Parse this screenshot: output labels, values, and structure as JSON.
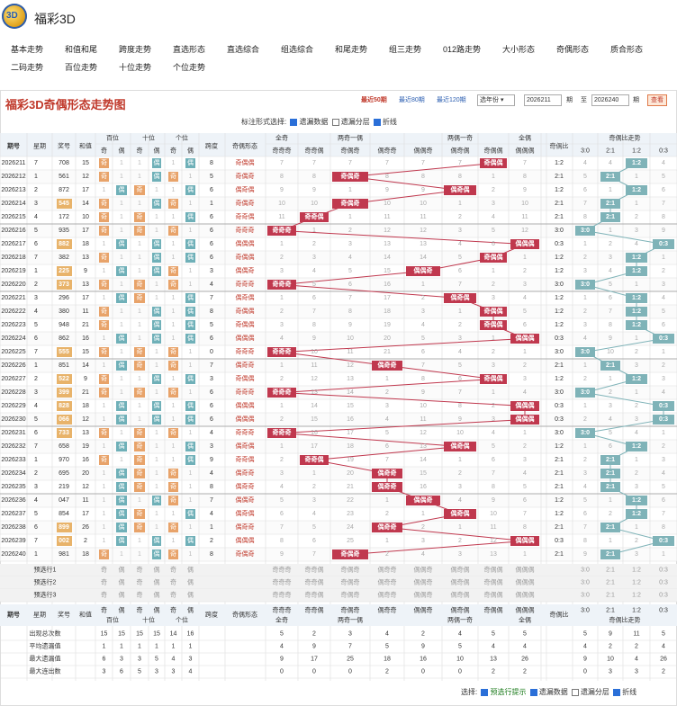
{
  "app": {
    "title": "福彩3D",
    "logo_text": "3D"
  },
  "nav": [
    {
      "label": "基本走势"
    },
    {
      "label": "和值和尾"
    },
    {
      "label": "跨度走势"
    },
    {
      "label": "直选形态"
    },
    {
      "label": "直选综合"
    },
    {
      "label": "组选综合"
    },
    {
      "label": "和尾走势"
    },
    {
      "label": "组三走势"
    },
    {
      "label": "012路走势"
    },
    {
      "label": "大小形态"
    },
    {
      "label": "奇偶形态"
    },
    {
      "label": "质合形态"
    },
    {
      "label": "二码走势"
    },
    {
      "label": "百位走势"
    },
    {
      "label": "十位走势"
    },
    {
      "label": "个位走势"
    }
  ],
  "page_title": "福彩3D奇偶形态走势图",
  "toolbar": {
    "recent50": "最近50期",
    "recent80": "最近80期",
    "recent120": "最近120期",
    "year_select": "选年份",
    "from": "2026211",
    "to_label": "至",
    "to": "2026240",
    "period_label": "期",
    "query": "查看"
  },
  "options": {
    "label": "标注形式选择:",
    "items": [
      {
        "label": "遗漏数据",
        "checked": true
      },
      {
        "label": "遗漏分层",
        "checked": false
      },
      {
        "label": "折线",
        "checked": true
      }
    ]
  },
  "headers": {
    "period": "期号",
    "week": "星期",
    "prize": "奖号",
    "sum": "和值",
    "bai": "百位",
    "shi": "十位",
    "ge": "个位",
    "span": "跨度",
    "form": "奇偶形态",
    "all_odd": "全奇",
    "one_even": "两奇一偶",
    "one_odd": "两偶一奇",
    "all_even": "全偶",
    "ratio": "奇偶比",
    "ratio_trend": "奇偶比走势",
    "odd": "奇",
    "even": "偶"
  },
  "form_cols": [
    "奇奇奇",
    "奇奇偶",
    "奇偶奇",
    "偶奇奇",
    "偶偶奇",
    "偶奇偶",
    "奇偶偶",
    "偶偶偶"
  ],
  "ratio_cols": [
    "3:0",
    "2:1",
    "1:2",
    "0:3"
  ],
  "rows": [
    {
      "period": "2026211",
      "week": "7",
      "prize": "708",
      "sum": "15",
      "span": "8",
      "form": "奇偶偶",
      "ratio": "1:2"
    },
    {
      "period": "2026212",
      "week": "1",
      "prize": "561",
      "sum": "12",
      "span": "5",
      "form": "奇偶奇",
      "ratio": "2:1"
    },
    {
      "period": "2026213",
      "week": "2",
      "prize": "872",
      "sum": "17",
      "span": "6",
      "form": "偶奇偶",
      "ratio": "1:2"
    },
    {
      "period": "2026214",
      "week": "3",
      "prize": "545",
      "sum": "14",
      "span": "1",
      "form": "奇偶奇",
      "ratio": "2:1"
    },
    {
      "period": "2026215",
      "week": "4",
      "prize": "172",
      "sum": "10",
      "span": "6",
      "form": "奇奇偶",
      "ratio": "2:1"
    },
    {
      "period": "2026216",
      "week": "5",
      "prize": "935",
      "sum": "17",
      "span": "6",
      "form": "奇奇奇",
      "ratio": "3:0"
    },
    {
      "period": "2026217",
      "week": "6",
      "prize": "882",
      "sum": "18",
      "span": "6",
      "form": "偶偶偶",
      "ratio": "0:3"
    },
    {
      "period": "2026218",
      "week": "7",
      "prize": "382",
      "sum": "13",
      "span": "6",
      "form": "奇偶偶",
      "ratio": "1:2"
    },
    {
      "period": "2026219",
      "week": "1",
      "prize": "225",
      "sum": "9",
      "span": "3",
      "form": "偶偶奇",
      "ratio": "1:2"
    },
    {
      "period": "2026220",
      "week": "2",
      "prize": "373",
      "sum": "13",
      "span": "4",
      "form": "奇奇奇",
      "ratio": "3:0"
    },
    {
      "period": "2026221",
      "week": "3",
      "prize": "296",
      "sum": "17",
      "span": "7",
      "form": "偶奇偶",
      "ratio": "1:2"
    },
    {
      "period": "2026222",
      "week": "4",
      "prize": "380",
      "sum": "11",
      "span": "8",
      "form": "奇偶偶",
      "ratio": "1:2"
    },
    {
      "period": "2026223",
      "week": "5",
      "prize": "948",
      "sum": "21",
      "span": "5",
      "form": "奇偶偶",
      "ratio": "1:2"
    },
    {
      "period": "2026224",
      "week": "6",
      "prize": "862",
      "sum": "16",
      "span": "6",
      "form": "偶偶偶",
      "ratio": "0:3"
    },
    {
      "period": "2026225",
      "week": "7",
      "prize": "555",
      "sum": "15",
      "span": "0",
      "form": "奇奇奇",
      "ratio": "3:0"
    },
    {
      "period": "2026226",
      "week": "1",
      "prize": "851",
      "sum": "14",
      "span": "7",
      "form": "偶奇奇",
      "ratio": "2:1"
    },
    {
      "period": "2026227",
      "week": "2",
      "prize": "522",
      "sum": "9",
      "span": "3",
      "form": "奇偶偶",
      "ratio": "1:2"
    },
    {
      "period": "2026228",
      "week": "3",
      "prize": "399",
      "sum": "21",
      "span": "6",
      "form": "奇奇奇",
      "ratio": "3:0"
    },
    {
      "period": "2026229",
      "week": "4",
      "prize": "828",
      "sum": "18",
      "span": "6",
      "form": "偶偶偶",
      "ratio": "0:3"
    },
    {
      "period": "2026230",
      "week": "5",
      "prize": "066",
      "sum": "12",
      "span": "6",
      "form": "偶偶偶",
      "ratio": "0:3"
    },
    {
      "period": "2026231",
      "week": "6",
      "prize": "733",
      "sum": "13",
      "span": "4",
      "form": "奇奇奇",
      "ratio": "3:0"
    },
    {
      "period": "2026232",
      "week": "7",
      "prize": "658",
      "sum": "19",
      "span": "3",
      "form": "偶奇偶",
      "ratio": "1:2"
    },
    {
      "period": "2026233",
      "week": "1",
      "prize": "970",
      "sum": "16",
      "span": "9",
      "form": "奇奇偶",
      "ratio": "2:1"
    },
    {
      "period": "2026234",
      "week": "2",
      "prize": "695",
      "sum": "20",
      "span": "4",
      "form": "偶奇奇",
      "ratio": "2:1"
    },
    {
      "period": "2026235",
      "week": "3",
      "prize": "219",
      "sum": "12",
      "span": "8",
      "form": "偶奇奇",
      "ratio": "2:1"
    },
    {
      "period": "2026236",
      "week": "4",
      "prize": "047",
      "span": "7",
      "sum": "11",
      "form": "偶偶奇",
      "ratio": "1:2"
    },
    {
      "period": "2026237",
      "week": "5",
      "prize": "854",
      "sum": "17",
      "span": "4",
      "form": "偶奇偶",
      "ratio": "1:2"
    },
    {
      "period": "2026238",
      "week": "6",
      "prize": "899",
      "sum": "26",
      "span": "1",
      "form": "偶奇奇",
      "ratio": "2:1"
    },
    {
      "period": "2026239",
      "week": "7",
      "prize": "002",
      "sum": "2",
      "span": "2",
      "form": "偶偶偶",
      "ratio": "0:3"
    },
    {
      "period": "2026240",
      "week": "1",
      "prize": "981",
      "sum": "18",
      "span": "8",
      "form": "奇偶奇",
      "ratio": "2:1"
    }
  ],
  "predict_rows": [
    {
      "label": "预选行1"
    },
    {
      "label": "预选行2"
    },
    {
      "label": "预选行3"
    }
  ],
  "stats": [
    {
      "label": "出现总次数",
      "digits": [
        "15",
        "15",
        "15",
        "15",
        "14",
        "16"
      ],
      "form": [
        "5",
        "2",
        "3",
        "4",
        "2",
        "4",
        "5",
        "5"
      ],
      "ratio": [
        "5",
        "9",
        "11",
        "5"
      ]
    },
    {
      "label": "平均遗漏值",
      "digits": [
        "1",
        "1",
        "1",
        "1",
        "1",
        "1"
      ],
      "form": [
        "4",
        "9",
        "7",
        "5",
        "9",
        "5",
        "4",
        "4"
      ],
      "ratio": [
        "4",
        "2",
        "2",
        "4"
      ]
    },
    {
      "label": "最大遗漏值",
      "digits": [
        "6",
        "3",
        "3",
        "5",
        "4",
        "3"
      ],
      "form": [
        "9",
        "17",
        "25",
        "18",
        "16",
        "10",
        "13",
        "26"
      ],
      "ratio": [
        "9",
        "10",
        "4",
        "26"
      ]
    },
    {
      "label": "最大连出数",
      "digits": [
        "3",
        "6",
        "5",
        "3",
        "3",
        "4"
      ],
      "form": [
        "0",
        "0",
        "0",
        "2",
        "0",
        "0",
        "2",
        "2"
      ],
      "ratio": [
        "0",
        "3",
        "3",
        "2"
      ]
    }
  ],
  "footer": {
    "label": "选择:",
    "items": [
      {
        "label": "预选行提示",
        "checked": true
      },
      {
        "label": "遗漏数据",
        "checked": true
      },
      {
        "label": "遗漏分层",
        "checked": false
      },
      {
        "label": "折线",
        "checked": true
      }
    ]
  },
  "colors": {
    "accent": "#c0392b",
    "hit_form": "#c0384e",
    "hit_ratio": "#7fb3b8",
    "prize_box": "#e8b36a",
    "odd_box": "#e8a36a",
    "even_box": "#6fb0b8",
    "grid": "#ddd",
    "header_bg": "#eef3f8"
  }
}
